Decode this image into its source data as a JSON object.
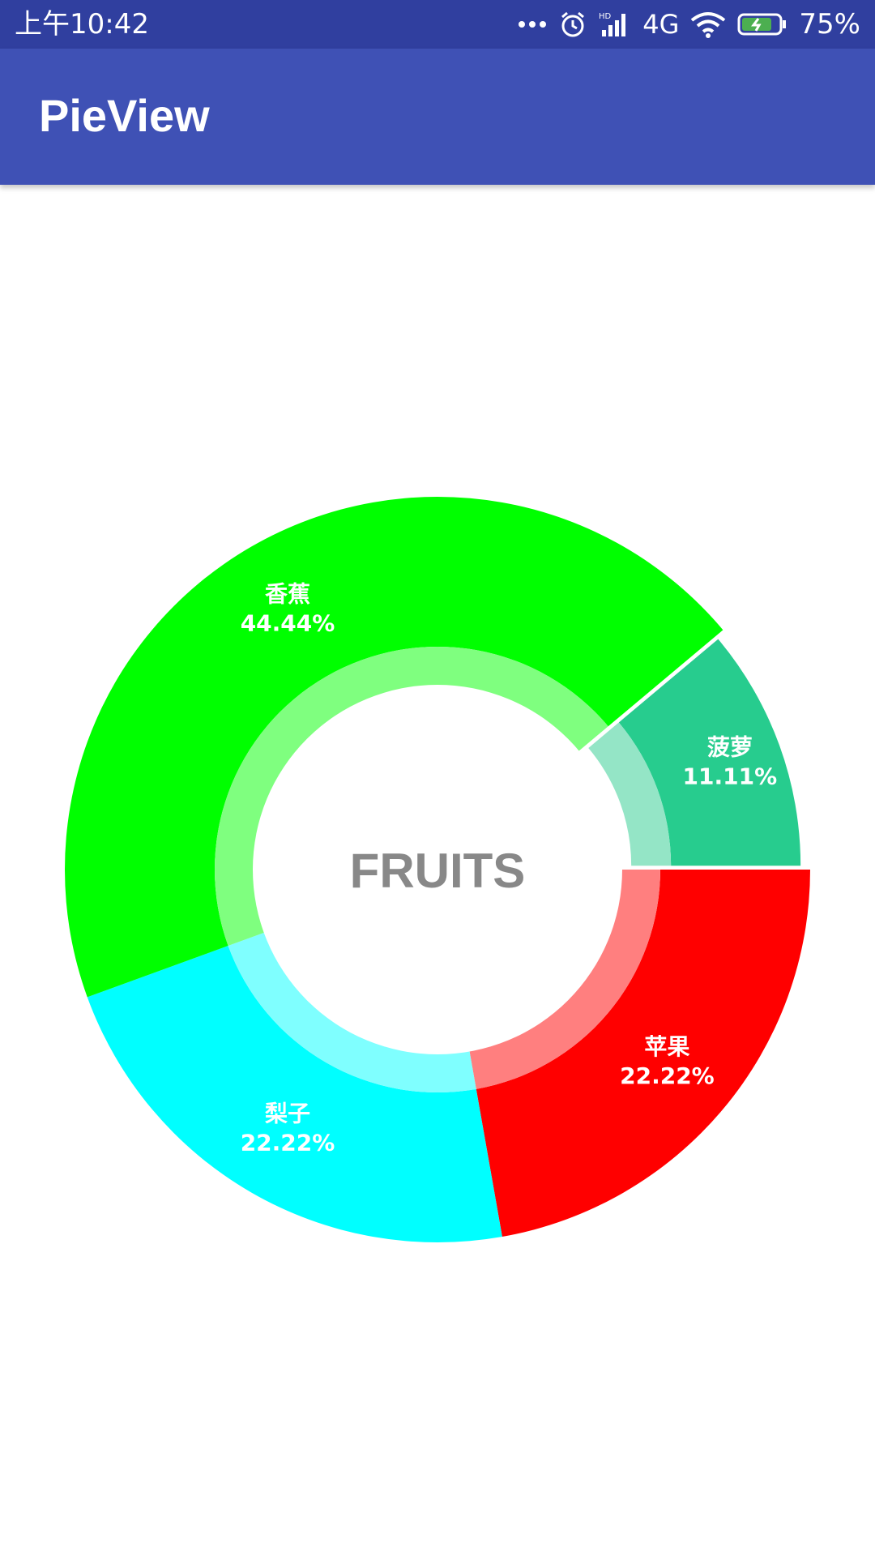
{
  "status_bar": {
    "time": "上午10:42",
    "network": "4G",
    "battery": "75%",
    "icons": [
      "more-dots-icon",
      "alarm-icon",
      "signal-icon",
      "wifi-icon",
      "battery-icon"
    ]
  },
  "app_bar": {
    "title": "PieView",
    "color": "#3F51B5",
    "status_color": "#303F9F"
  },
  "chart_data": {
    "type": "pie",
    "style": "donut",
    "center_text": "FRUITS",
    "slices": [
      {
        "name": "苹果",
        "percent_label": "22.22%",
        "value": 22.22,
        "color": "#FF0000",
        "inner_color": "#FF7F7F",
        "exploded": false
      },
      {
        "name": "梨子",
        "percent_label": "22.22%",
        "value": 22.22,
        "color": "#00FFFF",
        "inner_color": "#7FFFFF",
        "exploded": false
      },
      {
        "name": "香蕉",
        "percent_label": "44.44%",
        "value": 44.44,
        "color": "#00FF00",
        "inner_color": "#7FFF7F",
        "exploded": false
      },
      {
        "name": "菠萝",
        "percent_label": "11.11%",
        "value": 11.11,
        "color": "#27CC8E",
        "inner_color": "#94E5C6",
        "exploded": true
      }
    ]
  }
}
